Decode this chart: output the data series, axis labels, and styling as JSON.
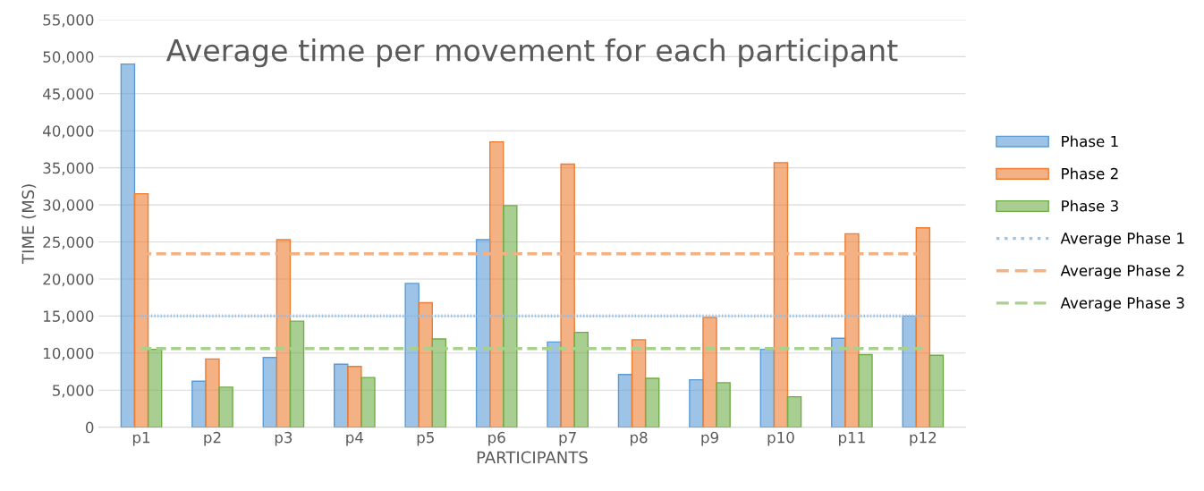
{
  "chart_data": {
    "type": "bar",
    "title": "Average time per movement for each participant",
    "xlabel": "PARTICIPANTS",
    "ylabel": "TIME (MS)",
    "categories": [
      "p1",
      "p2",
      "p3",
      "p4",
      "p5",
      "p6",
      "p7",
      "p8",
      "p9",
      "p10",
      "p11",
      "p12"
    ],
    "series": [
      {
        "name": "Phase 1",
        "color": "#5b9bd5",
        "values": [
          49000,
          6200,
          9400,
          8500,
          19400,
          25300,
          11500,
          7100,
          6400,
          10500,
          12000,
          15000
        ]
      },
      {
        "name": "Phase 2",
        "color": "#ed7d31",
        "values": [
          31500,
          9200,
          25300,
          8200,
          16800,
          38500,
          35500,
          11800,
          14800,
          35700,
          26100,
          26900
        ]
      },
      {
        "name": "Phase 3",
        "color": "#70ad47",
        "values": [
          10500,
          5400,
          14300,
          6700,
          11900,
          29900,
          12800,
          6600,
          6000,
          4100,
          9800,
          9700
        ]
      },
      {
        "name": "Average Phase 1",
        "type": "line",
        "line_style": "dotted",
        "color": "#9dc3e6",
        "values": [
          15000,
          15000,
          15000,
          15000,
          15000,
          15000,
          15000,
          15000,
          15000,
          15000,
          15000,
          15000
        ]
      },
      {
        "name": "Average Phase 2",
        "type": "line",
        "line_style": "dashed",
        "color": "#f4b183",
        "values": [
          23400,
          23400,
          23400,
          23400,
          23400,
          23400,
          23400,
          23400,
          23400,
          23400,
          23400,
          23400
        ]
      },
      {
        "name": "Average Phase 3",
        "type": "line",
        "line_style": "dashed",
        "color": "#a9d18e",
        "values": [
          10600,
          10600,
          10600,
          10600,
          10600,
          10600,
          10600,
          10600,
          10600,
          10600,
          10600,
          10600
        ]
      }
    ],
    "ylim": [
      0,
      55000
    ],
    "yticks": [
      {
        "value": 0,
        "label": "0"
      },
      {
        "value": 5000,
        "label": "5,000"
      },
      {
        "value": 10000,
        "label": "10,000"
      },
      {
        "value": 15000,
        "label": "15,000"
      },
      {
        "value": 20000,
        "label": "20,000"
      },
      {
        "value": 25000,
        "label": "25,000"
      },
      {
        "value": 30000,
        "label": "30,000"
      },
      {
        "value": 35000,
        "label": "35,000"
      },
      {
        "value": 40000,
        "label": "40,000"
      },
      {
        "value": 45000,
        "label": "45,000"
      },
      {
        "value": 50000,
        "label": "50,000"
      },
      {
        "value": 55000,
        "label": "55,000"
      }
    ],
    "grid": "y",
    "legend": "right"
  }
}
